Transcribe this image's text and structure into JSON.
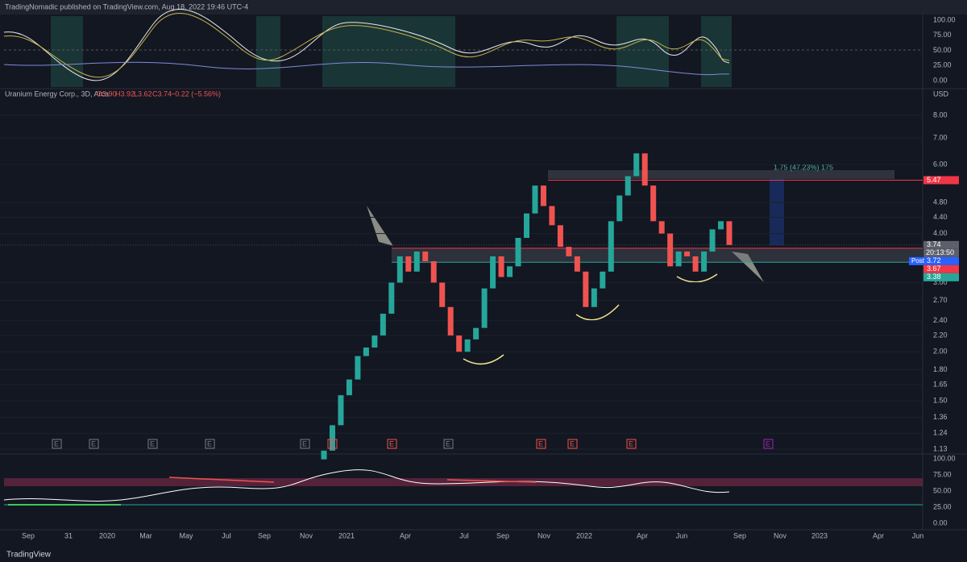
{
  "header": {
    "publisher": "TradingNomadic published on TradingView.com, Aug 18, 2022 19:46 UTC-4"
  },
  "legend": {
    "symbol": "Uranium Energy Corp., 3D, Arca",
    "open": "O3.90",
    "high": "H3.92",
    "low": "L3.62",
    "close": "C3.74",
    "change": "−0.22 (−5.56%)"
  },
  "top_oscillator": {
    "ticks": [
      "100.00",
      "75.00",
      "50.00",
      "25.00",
      "0.00"
    ]
  },
  "price_axis": {
    "unit": "USD",
    "ticks": [
      "8.00",
      "7.00",
      "6.00",
      "4.80",
      "4.40",
      "4.00",
      "3.00",
      "2.70",
      "2.40",
      "2.20",
      "2.00",
      "1.80",
      "1.65",
      "1.50",
      "1.36",
      "1.24",
      "1.13"
    ]
  },
  "price_tags": [
    {
      "value": 5.47,
      "label": "5.47",
      "kind": "level"
    },
    {
      "value": 3.74,
      "label": "3.74",
      "kind": "last"
    },
    {
      "value": 3.72,
      "label": "3.72",
      "kind": "post",
      "prefix": "Post"
    },
    {
      "value": 3.67,
      "label": "3.67",
      "kind": "level"
    },
    {
      "value": 3.38,
      "label": "3.38",
      "kind": "support"
    }
  ],
  "countdown": "20:13:50",
  "measure": "1.75 (47.23%) 175",
  "closes": [
    1.12,
    1.3,
    1.55,
    1.7,
    1.95,
    2.05,
    2.2,
    2.5,
    3.0,
    3.5,
    3.2,
    3.6,
    3.4,
    3.0,
    2.6,
    2.2,
    2.0,
    2.15,
    2.3,
    2.9,
    3.5,
    3.1,
    3.3,
    3.9,
    4.5,
    5.3,
    4.7,
    4.2,
    3.7,
    3.5,
    3.2,
    2.6,
    2.9,
    3.2,
    4.3,
    5.0,
    5.6,
    6.4,
    5.3,
    4.3,
    4.0,
    3.3,
    3.6,
    3.5,
    3.2,
    3.6,
    4.1,
    4.3,
    3.74
  ],
  "earnings": [
    "E",
    "E",
    "E",
    "E",
    "E",
    "E",
    "E",
    "E",
    "E",
    "E",
    "E",
    "E"
  ],
  "rsi_axis": {
    "ticks": [
      "100.00",
      "75.00",
      "50.00",
      "25.00",
      "0.00"
    ]
  },
  "time_axis": [
    "Sep",
    "31",
    "2020",
    "Mar",
    "May",
    "Jul",
    "Sep",
    "Nov",
    "2021",
    "Apr",
    "Jul",
    "Sep",
    "Nov",
    "2022",
    "Apr",
    "Jun",
    "Sep",
    "Nov",
    "2023",
    "Apr",
    "Jun"
  ],
  "footer": "TradingView"
}
